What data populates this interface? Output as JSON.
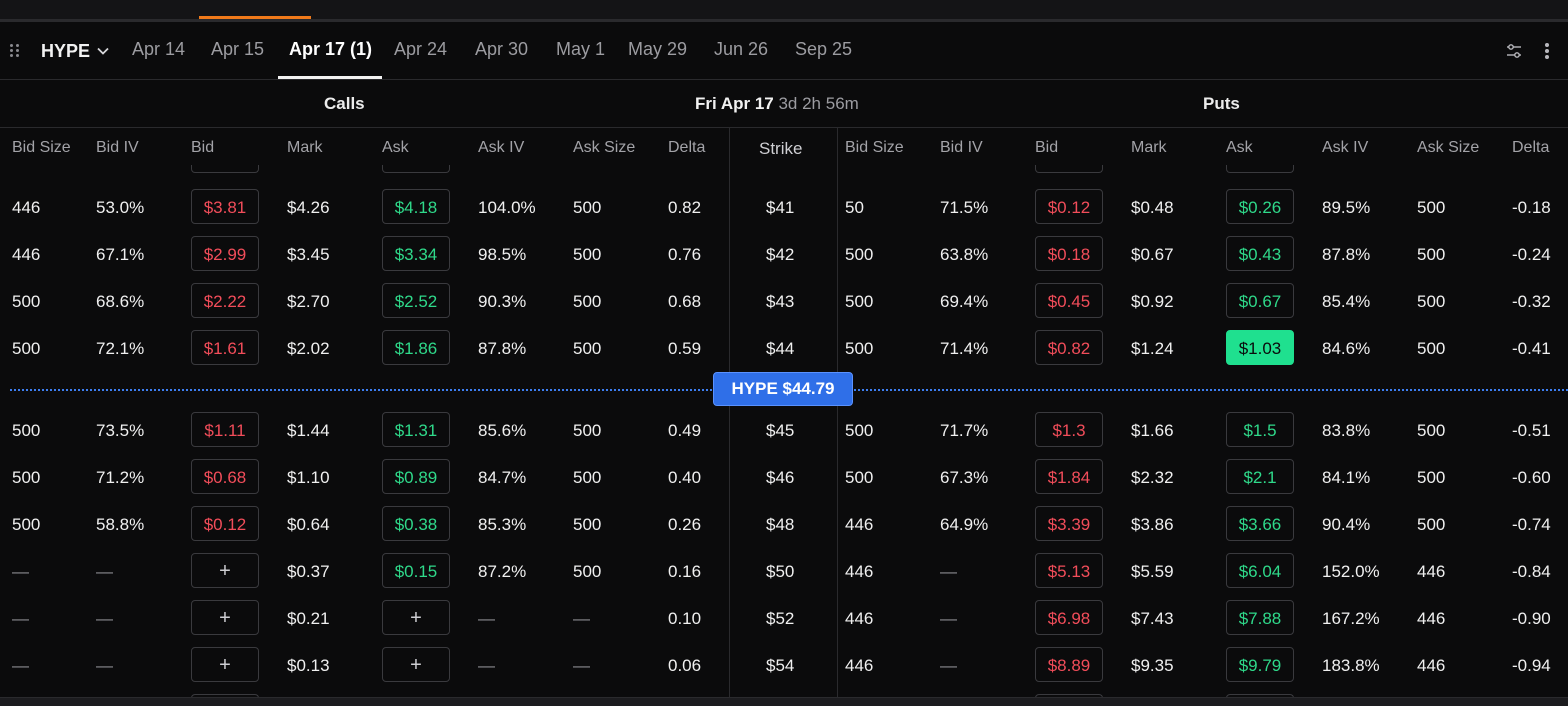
{
  "header": {
    "asset": "HYPE",
    "tabs": [
      {
        "label": "Apr 14",
        "active": false
      },
      {
        "label": "Apr 15",
        "active": false
      },
      {
        "label": "Apr 17 (1)",
        "active": true
      },
      {
        "label": "Apr 24",
        "active": false
      },
      {
        "label": "Apr 30",
        "active": false
      },
      {
        "label": "May 1",
        "active": false
      },
      {
        "label": "May 29",
        "active": false
      },
      {
        "label": "Jun 26",
        "active": false
      },
      {
        "label": "Sep 25",
        "active": false
      }
    ]
  },
  "section": {
    "calls": "Calls",
    "puts": "Puts",
    "expiry": "Fri Apr 17",
    "countdown": "3d 2h 56m"
  },
  "columns": {
    "calls": [
      "Bid Size",
      "Bid IV",
      "Bid",
      "Mark",
      "Ask",
      "Ask IV",
      "Ask Size",
      "Delta"
    ],
    "strike": "Strike",
    "puts": [
      "Bid Size",
      "Bid IV",
      "Bid",
      "Mark",
      "Ask",
      "Ask IV",
      "Ask Size",
      "Delta"
    ]
  },
  "spot": "HYPE $44.79",
  "colors": {
    "bid": "#f24d5a",
    "ask": "#2fd98a",
    "accent": "#f07a1a",
    "spot": "#2f6fe8"
  },
  "rows": [
    {
      "strike": "$41",
      "call": {
        "bid_size": "446",
        "bid_iv": "53.0%",
        "bid": "$3.81",
        "mark": "$4.26",
        "ask": "$4.18",
        "ask_iv": "104.0%",
        "ask_size": "500",
        "delta": "0.82"
      },
      "put": {
        "bid_size": "50",
        "bid_iv": "71.5%",
        "bid": "$0.12",
        "mark": "$0.48",
        "ask": "$0.26",
        "ask_iv": "89.5%",
        "ask_size": "500",
        "delta": "-0.18"
      }
    },
    {
      "strike": "$42",
      "call": {
        "bid_size": "446",
        "bid_iv": "67.1%",
        "bid": "$2.99",
        "mark": "$3.45",
        "ask": "$3.34",
        "ask_iv": "98.5%",
        "ask_size": "500",
        "delta": "0.76"
      },
      "put": {
        "bid_size": "500",
        "bid_iv": "63.8%",
        "bid": "$0.18",
        "mark": "$0.67",
        "ask": "$0.43",
        "ask_iv": "87.8%",
        "ask_size": "500",
        "delta": "-0.24"
      }
    },
    {
      "strike": "$43",
      "call": {
        "bid_size": "500",
        "bid_iv": "68.6%",
        "bid": "$2.22",
        "mark": "$2.70",
        "ask": "$2.52",
        "ask_iv": "90.3%",
        "ask_size": "500",
        "delta": "0.68"
      },
      "put": {
        "bid_size": "500",
        "bid_iv": "69.4%",
        "bid": "$0.45",
        "mark": "$0.92",
        "ask": "$0.67",
        "ask_iv": "85.4%",
        "ask_size": "500",
        "delta": "-0.32"
      }
    },
    {
      "strike": "$44",
      "call": {
        "bid_size": "500",
        "bid_iv": "72.1%",
        "bid": "$1.61",
        "mark": "$2.02",
        "ask": "$1.86",
        "ask_iv": "87.8%",
        "ask_size": "500",
        "delta": "0.59"
      },
      "put": {
        "bid_size": "500",
        "bid_iv": "71.4%",
        "bid": "$0.82",
        "mark": "$1.24",
        "ask": "$1.03",
        "ask_iv": "84.6%",
        "ask_size": "500",
        "delta": "-0.41",
        "ask_selected": true
      }
    },
    {
      "strike": "$45",
      "call": {
        "bid_size": "500",
        "bid_iv": "73.5%",
        "bid": "$1.11",
        "mark": "$1.44",
        "ask": "$1.31",
        "ask_iv": "85.6%",
        "ask_size": "500",
        "delta": "0.49"
      },
      "put": {
        "bid_size": "500",
        "bid_iv": "71.7%",
        "bid": "$1.3",
        "mark": "$1.66",
        "ask": "$1.5",
        "ask_iv": "83.8%",
        "ask_size": "500",
        "delta": "-0.51"
      }
    },
    {
      "strike": "$46",
      "call": {
        "bid_size": "500",
        "bid_iv": "71.2%",
        "bid": "$0.68",
        "mark": "$1.10",
        "ask": "$0.89",
        "ask_iv": "84.7%",
        "ask_size": "500",
        "delta": "0.40"
      },
      "put": {
        "bid_size": "500",
        "bid_iv": "67.3%",
        "bid": "$1.84",
        "mark": "$2.32",
        "ask": "$2.1",
        "ask_iv": "84.1%",
        "ask_size": "500",
        "delta": "-0.60"
      }
    },
    {
      "strike": "$48",
      "call": {
        "bid_size": "500",
        "bid_iv": "58.8%",
        "bid": "$0.12",
        "mark": "$0.64",
        "ask": "$0.38",
        "ask_iv": "85.3%",
        "ask_size": "500",
        "delta": "0.26"
      },
      "put": {
        "bid_size": "446",
        "bid_iv": "64.9%",
        "bid": "$3.39",
        "mark": "$3.86",
        "ask": "$3.66",
        "ask_iv": "90.4%",
        "ask_size": "500",
        "delta": "-0.74"
      }
    },
    {
      "strike": "$50",
      "call": {
        "bid_size": "—",
        "bid_iv": "—",
        "bid": "+",
        "mark": "$0.37",
        "ask": "$0.15",
        "ask_iv": "87.2%",
        "ask_size": "500",
        "delta": "0.16"
      },
      "put": {
        "bid_size": "446",
        "bid_iv": "—",
        "bid": "$5.13",
        "mark": "$5.59",
        "ask": "$6.04",
        "ask_iv": "152.0%",
        "ask_size": "446",
        "delta": "-0.84"
      }
    },
    {
      "strike": "$52",
      "call": {
        "bid_size": "—",
        "bid_iv": "—",
        "bid": "+",
        "mark": "$0.21",
        "ask": "+",
        "ask_iv": "—",
        "ask_size": "—",
        "delta": "0.10"
      },
      "put": {
        "bid_size": "446",
        "bid_iv": "—",
        "bid": "$6.98",
        "mark": "$7.43",
        "ask": "$7.88",
        "ask_iv": "167.2%",
        "ask_size": "446",
        "delta": "-0.90"
      }
    },
    {
      "strike": "$54",
      "call": {
        "bid_size": "—",
        "bid_iv": "—",
        "bid": "+",
        "mark": "$0.13",
        "ask": "+",
        "ask_iv": "—",
        "ask_size": "—",
        "delta": "0.06"
      },
      "put": {
        "bid_size": "446",
        "bid_iv": "—",
        "bid": "$8.89",
        "mark": "$9.35",
        "ask": "$9.79",
        "ask_iv": "183.8%",
        "ask_size": "446",
        "delta": "-0.94"
      }
    }
  ]
}
